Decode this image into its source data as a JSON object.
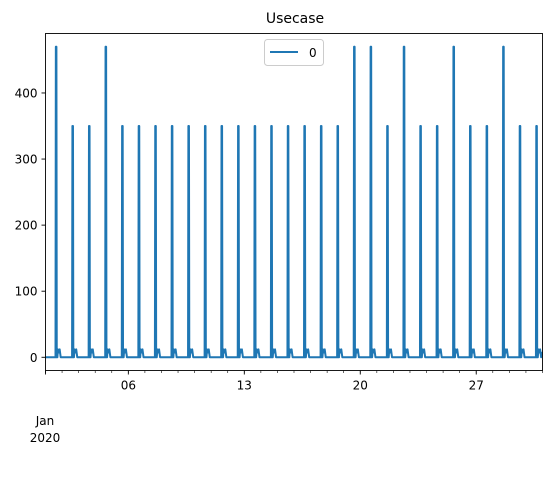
{
  "chart_data": {
    "type": "line",
    "title": "Usecase",
    "xlabel": "",
    "ylabel": "",
    "x_axis": {
      "type": "date",
      "range": [
        "2020-01-01",
        "2020-01-31"
      ],
      "major_ticks": [
        {
          "date": "2020-01-06",
          "label": "06"
        },
        {
          "date": "2020-01-13",
          "label": "13"
        },
        {
          "date": "2020-01-20",
          "label": "20"
        },
        {
          "date": "2020-01-27",
          "label": "27"
        }
      ],
      "period_label": {
        "month": "Jan",
        "year": "2020"
      }
    },
    "y_axis": {
      "range": [
        -20,
        490
      ],
      "ticks": [
        0,
        100,
        200,
        300,
        400
      ]
    },
    "grid": false,
    "legend": {
      "placement": "top-center",
      "entries": [
        "0"
      ]
    },
    "series": [
      {
        "name": "0",
        "color": "#1f77b4",
        "spikes": [
          {
            "date": "2020-01-01T16:00",
            "value": 470
          },
          {
            "date": "2020-01-02T16:00",
            "value": 350
          },
          {
            "date": "2020-01-03T16:00",
            "value": 350
          },
          {
            "date": "2020-01-04T16:00",
            "value": 470
          },
          {
            "date": "2020-01-05T16:00",
            "value": 350
          },
          {
            "date": "2020-01-06T16:00",
            "value": 350
          },
          {
            "date": "2020-01-07T16:00",
            "value": 350
          },
          {
            "date": "2020-01-08T16:00",
            "value": 350
          },
          {
            "date": "2020-01-09T16:00",
            "value": 350
          },
          {
            "date": "2020-01-10T16:00",
            "value": 350
          },
          {
            "date": "2020-01-11T16:00",
            "value": 350
          },
          {
            "date": "2020-01-12T16:00",
            "value": 350
          },
          {
            "date": "2020-01-13T16:00",
            "value": 350
          },
          {
            "date": "2020-01-14T16:00",
            "value": 350
          },
          {
            "date": "2020-01-15T16:00",
            "value": 350
          },
          {
            "date": "2020-01-16T16:00",
            "value": 350
          },
          {
            "date": "2020-01-17T16:00",
            "value": 350
          },
          {
            "date": "2020-01-18T16:00",
            "value": 350
          },
          {
            "date": "2020-01-19T16:00",
            "value": 470
          },
          {
            "date": "2020-01-20T16:00",
            "value": 470
          },
          {
            "date": "2020-01-21T16:00",
            "value": 350
          },
          {
            "date": "2020-01-22T16:00",
            "value": 470
          },
          {
            "date": "2020-01-23T16:00",
            "value": 350
          },
          {
            "date": "2020-01-24T16:00",
            "value": 350
          },
          {
            "date": "2020-01-25T16:00",
            "value": 470
          },
          {
            "date": "2020-01-26T16:00",
            "value": 350
          },
          {
            "date": "2020-01-27T16:00",
            "value": 350
          },
          {
            "date": "2020-01-28T16:00",
            "value": 470
          },
          {
            "date": "2020-01-29T16:00",
            "value": 350
          },
          {
            "date": "2020-01-30T16:00",
            "value": 350
          }
        ],
        "baseline_value": 0,
        "bump_value": 12
      }
    ]
  }
}
